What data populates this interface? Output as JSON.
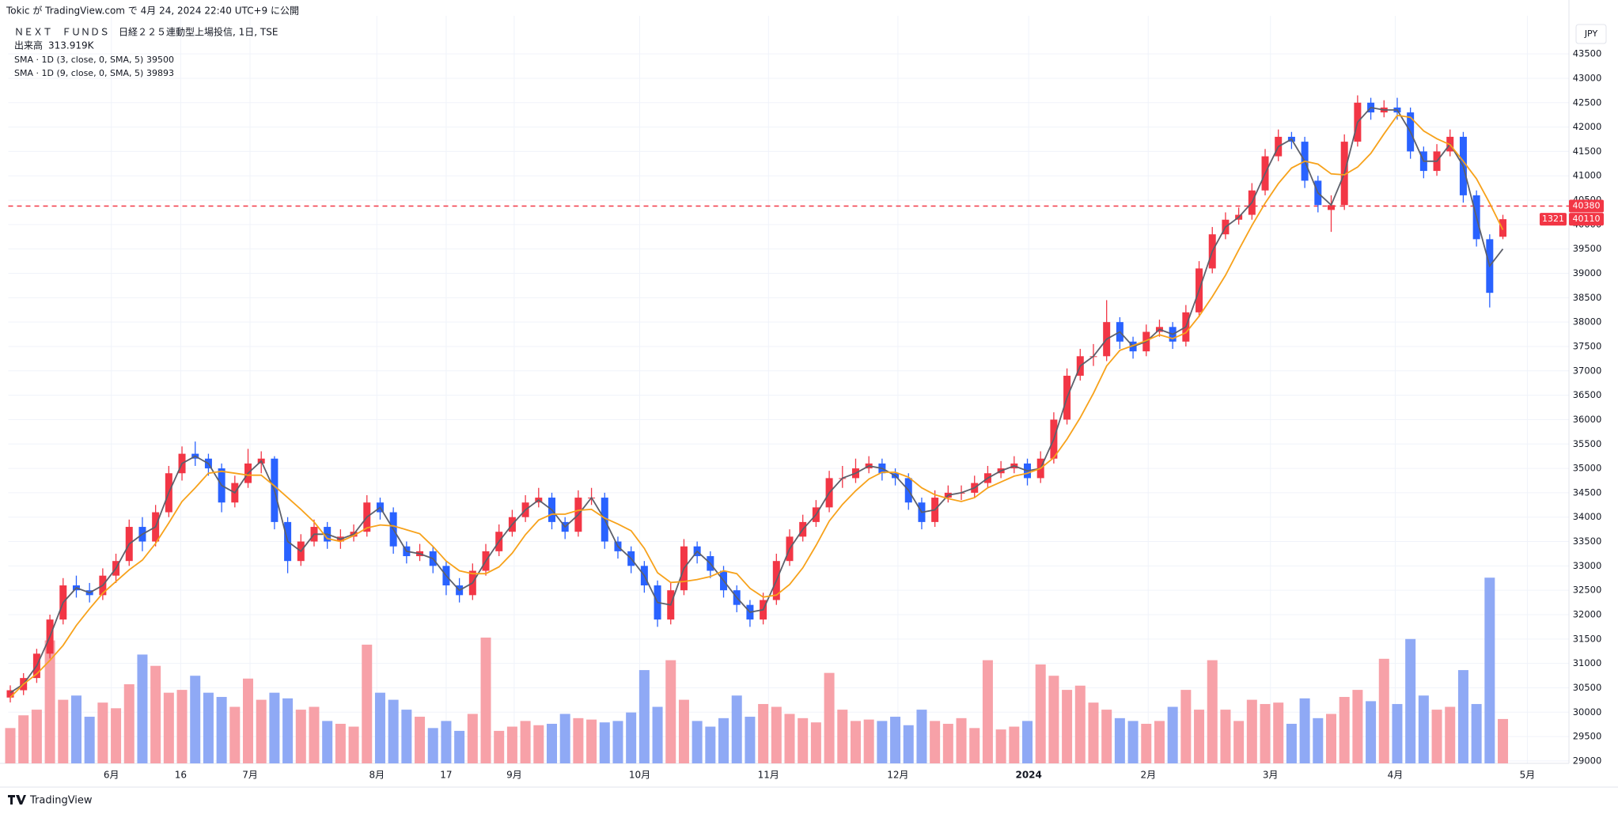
{
  "header": {
    "published": "Tokic が TradingView.com で 4月 24, 2024 22:40 UTC+9 に公開"
  },
  "footer": {
    "brand": "TradingView"
  },
  "chart_data": {
    "type": "candlestick",
    "title": "ＮＥＸＴ　ＦＵＮＤＳ　日経２２５連動型上場投信, 1日, TSE",
    "currency": "JPY",
    "grid": true,
    "up_color": "#f23645",
    "down_color": "#2962ff",
    "xlim": [
      -0.3,
      236
    ],
    "ylim": [
      28950,
      44200
    ],
    "yticks": [
      29000,
      29500,
      30000,
      30500,
      31000,
      31500,
      32000,
      32500,
      33000,
      33500,
      34000,
      34500,
      35000,
      35500,
      36000,
      36500,
      37000,
      37500,
      38000,
      38500,
      39000,
      39500,
      40000,
      40500,
      41000,
      41500,
      42000,
      42500,
      43000,
      43500
    ],
    "xticks": [
      {
        "value": 15.3,
        "label": "6月"
      },
      {
        "value": 25.8,
        "label": "16"
      },
      {
        "value": 36.3,
        "label": "7月"
      },
      {
        "value": 55.5,
        "label": "8月"
      },
      {
        "value": 66,
        "label": "17"
      },
      {
        "value": 76.3,
        "label": "9月"
      },
      {
        "value": 95.3,
        "label": "10月"
      },
      {
        "value": 114.8,
        "label": "11月"
      },
      {
        "value": 134.4,
        "label": "12月"
      },
      {
        "value": 154.2,
        "label": "2024"
      },
      {
        "value": 172.3,
        "label": "2月"
      },
      {
        "value": 190.8,
        "label": "3月"
      },
      {
        "value": 209.7,
        "label": "4月"
      },
      {
        "value": 229.7,
        "label": "5月"
      }
    ],
    "x": [
      0,
      2,
      4,
      6,
      8,
      10,
      12,
      14,
      16,
      18,
      20,
      22,
      24,
      26,
      28,
      30,
      32,
      34,
      36,
      38,
      40,
      42,
      44,
      46,
      48,
      50,
      52,
      54,
      56,
      58,
      60,
      62,
      64,
      66,
      68,
      70,
      72,
      74,
      76,
      78,
      80,
      82,
      84,
      86,
      88,
      90,
      92,
      94,
      96,
      98,
      100,
      102,
      104,
      106,
      108,
      110,
      112,
      114,
      116,
      118,
      120,
      122,
      124,
      126,
      128,
      130,
      132,
      134,
      136,
      138,
      140,
      142,
      144,
      146,
      148,
      150,
      152,
      154,
      156,
      158,
      160,
      162,
      164,
      166,
      168,
      170,
      172,
      174,
      176,
      178,
      180,
      182,
      184,
      186,
      188,
      190,
      192,
      194,
      196,
      198,
      200,
      202,
      204,
      206,
      208,
      210,
      212,
      214,
      216,
      218,
      220,
      222,
      224,
      226
    ],
    "candles": [
      [
        30300,
        30550,
        30200,
        30450
      ],
      [
        30450,
        30800,
        30350,
        30700
      ],
      [
        30700,
        31300,
        30600,
        31200
      ],
      [
        31200,
        32000,
        31100,
        31900
      ],
      [
        31900,
        32750,
        31800,
        32600
      ],
      [
        32600,
        32800,
        32350,
        32500
      ],
      [
        32500,
        32650,
        32250,
        32400
      ],
      [
        32400,
        32950,
        32300,
        32800
      ],
      [
        32800,
        33250,
        32650,
        33100
      ],
      [
        33100,
        33950,
        33000,
        33800
      ],
      [
        33800,
        34000,
        33300,
        33500
      ],
      [
        33500,
        34250,
        33400,
        34100
      ],
      [
        34100,
        35050,
        34000,
        34900
      ],
      [
        34900,
        35450,
        34750,
        35300
      ],
      [
        35300,
        35550,
        35050,
        35200
      ],
      [
        35200,
        35300,
        34850,
        35000
      ],
      [
        35000,
        35100,
        34100,
        34300
      ],
      [
        34300,
        34850,
        34200,
        34700
      ],
      [
        34700,
        35400,
        34600,
        35100
      ],
      [
        35100,
        35350,
        34900,
        35200
      ],
      [
        35200,
        35250,
        33750,
        33900
      ],
      [
        33900,
        34000,
        32850,
        33100
      ],
      [
        33100,
        33650,
        33000,
        33500
      ],
      [
        33500,
        33950,
        33400,
        33800
      ],
      [
        33800,
        33900,
        33350,
        33500
      ],
      [
        33500,
        33750,
        33350,
        33600
      ],
      [
        33600,
        33850,
        33500,
        33700
      ],
      [
        33700,
        34450,
        33600,
        34300
      ],
      [
        34300,
        34400,
        33950,
        34100
      ],
      [
        34100,
        34200,
        33250,
        33400
      ],
      [
        33400,
        33500,
        33050,
        33200
      ],
      [
        33200,
        33450,
        33100,
        33300
      ],
      [
        33300,
        33400,
        32850,
        33000
      ],
      [
        33000,
        33100,
        32400,
        32600
      ],
      [
        32600,
        32750,
        32250,
        32400
      ],
      [
        32400,
        33050,
        32300,
        32900
      ],
      [
        32900,
        33450,
        32800,
        33300
      ],
      [
        33300,
        33850,
        33200,
        33700
      ],
      [
        33700,
        34150,
        33600,
        34000
      ],
      [
        34000,
        34450,
        33900,
        34300
      ],
      [
        34300,
        34600,
        34200,
        34400
      ],
      [
        34400,
        34500,
        33750,
        33900
      ],
      [
        33900,
        34000,
        33550,
        33700
      ],
      [
        33700,
        34550,
        33600,
        34400
      ],
      [
        34400,
        34600,
        34250,
        34400
      ],
      [
        34400,
        34500,
        33350,
        33500
      ],
      [
        33500,
        33600,
        33150,
        33300
      ],
      [
        33300,
        33400,
        32850,
        33000
      ],
      [
        33000,
        33100,
        32450,
        32600
      ],
      [
        32600,
        32700,
        31750,
        31900
      ],
      [
        31900,
        32650,
        31800,
        32500
      ],
      [
        32500,
        33550,
        32400,
        33400
      ],
      [
        33400,
        33500,
        33050,
        33200
      ],
      [
        33200,
        33300,
        32750,
        32900
      ],
      [
        32900,
        33000,
        32350,
        32500
      ],
      [
        32500,
        32600,
        32050,
        32200
      ],
      [
        32200,
        32300,
        31750,
        31900
      ],
      [
        31900,
        32450,
        31800,
        32300
      ],
      [
        32300,
        33250,
        32200,
        33100
      ],
      [
        33100,
        33750,
        33000,
        33600
      ],
      [
        33600,
        34050,
        33500,
        33900
      ],
      [
        33900,
        34350,
        33800,
        34200
      ],
      [
        34200,
        34950,
        34100,
        34800
      ],
      [
        34800,
        35050,
        34600,
        34800
      ],
      [
        34800,
        35200,
        34700,
        35000
      ],
      [
        35000,
        35250,
        34900,
        35100
      ],
      [
        35100,
        35200,
        34750,
        34900
      ],
      [
        34900,
        35000,
        34650,
        34800
      ],
      [
        34800,
        34900,
        34150,
        34300
      ],
      [
        34300,
        34400,
        33750,
        33900
      ],
      [
        33900,
        34550,
        33800,
        34400
      ],
      [
        34400,
        34650,
        34300,
        34500
      ],
      [
        34500,
        34650,
        34350,
        34500
      ],
      [
        34500,
        34850,
        34400,
        34700
      ],
      [
        34700,
        35050,
        34600,
        34900
      ],
      [
        34900,
        35150,
        34800,
        35000
      ],
      [
        35000,
        35250,
        34900,
        35100
      ],
      [
        35100,
        35200,
        34650,
        34800
      ],
      [
        34800,
        35350,
        34700,
        35200
      ],
      [
        35200,
        36150,
        35100,
        36000
      ],
      [
        36000,
        37050,
        35900,
        36900
      ],
      [
        36900,
        37450,
        36800,
        37300
      ],
      [
        37300,
        37550,
        37100,
        37300
      ],
      [
        37300,
        38450,
        37200,
        38000
      ],
      [
        38000,
        38100,
        37450,
        37600
      ],
      [
        37600,
        37700,
        37250,
        37400
      ],
      [
        37400,
        37950,
        37300,
        37800
      ],
      [
        37800,
        38050,
        37700,
        37900
      ],
      [
        37900,
        38000,
        37450,
        37600
      ],
      [
        37600,
        38350,
        37500,
        38200
      ],
      [
        38200,
        39250,
        38100,
        39100
      ],
      [
        39100,
        39950,
        39000,
        39800
      ],
      [
        39800,
        40250,
        39700,
        40100
      ],
      [
        40100,
        40350,
        40000,
        40200
      ],
      [
        40200,
        40850,
        40100,
        40700
      ],
      [
        40700,
        41550,
        40600,
        41400
      ],
      [
        41400,
        41950,
        41300,
        41800
      ],
      [
        41800,
        41900,
        41550,
        41700
      ],
      [
        41700,
        41800,
        40750,
        40900
      ],
      [
        40900,
        41000,
        40250,
        40400
      ],
      [
        40300,
        40600,
        39850,
        40400
      ],
      [
        40400,
        41850,
        40300,
        41700
      ],
      [
        41700,
        42650,
        41600,
        42500
      ],
      [
        42500,
        42600,
        42150,
        42300
      ],
      [
        42300,
        42550,
        42200,
        42400
      ],
      [
        42400,
        42600,
        42150,
        42300
      ],
      [
        42300,
        42400,
        41350,
        41500
      ],
      [
        41500,
        41600,
        40950,
        41100
      ],
      [
        41100,
        41650,
        41000,
        41500
      ],
      [
        41500,
        41950,
        41400,
        41800
      ],
      [
        41800,
        41900,
        40450,
        40600
      ],
      [
        40600,
        40700,
        39550,
        39700
      ],
      [
        39700,
        39800,
        38300,
        38600
      ],
      [
        39750,
        40200,
        39700,
        40110
      ]
    ],
    "volume": {
      "name": "出来高",
      "value_label": "313.919K",
      "ylim": [
        0,
        1500
      ],
      "up_color": "#f7a1a8",
      "down_color": "#8fa9f5",
      "values": [
        250,
        340,
        380,
        870,
        450,
        480,
        330,
        430,
        390,
        560,
        770,
        690,
        500,
        520,
        620,
        500,
        470,
        400,
        600,
        450,
        500,
        460,
        380,
        400,
        300,
        280,
        260,
        840,
        500,
        450,
        380,
        330,
        250,
        300,
        230,
        350,
        890,
        230,
        260,
        300,
        270,
        280,
        350,
        320,
        310,
        290,
        300,
        360,
        660,
        400,
        730,
        450,
        300,
        260,
        320,
        480,
        330,
        420,
        400,
        350,
        320,
        290,
        640,
        380,
        300,
        310,
        300,
        330,
        270,
        380,
        300,
        280,
        320,
        250,
        730,
        240,
        260,
        300,
        700,
        620,
        520,
        550,
        430,
        380,
        320,
        300,
        280,
        300,
        400,
        520,
        380,
        730,
        380,
        300,
        450,
        420,
        430,
        280,
        460,
        320,
        350,
        470,
        520,
        440,
        740,
        420,
        880,
        480,
        380,
        400,
        660,
        420,
        1314,
        313.919
      ]
    },
    "series": [
      {
        "name": "SMA · 1D (3, close, 0, SMA, 5)",
        "color": "#5d606b",
        "values": [
          30400,
          30575,
          30950,
          31550,
          32250,
          32550,
          32450,
          32600,
          32950,
          33450,
          33650,
          33800,
          34500,
          35100,
          35250,
          35100,
          34650,
          34500,
          34900,
          35150,
          34550,
          33500,
          33300,
          33650,
          33650,
          33550,
          33650,
          34000,
          34200,
          33750,
          33300,
          33250,
          33150,
          32800,
          32500,
          32650,
          33100,
          33500,
          33850,
          34150,
          34350,
          34150,
          33800,
          34050,
          34400,
          33950,
          33400,
          33150,
          32800,
          32250,
          32200,
          32950,
          33300,
          33050,
          32700,
          32350,
          32050,
          32100,
          32700,
          33350,
          33750,
          34050,
          34500,
          34800,
          34900,
          35050,
          35000,
          34850,
          34550,
          34100,
          34150,
          34450,
          34500,
          34600,
          34800,
          34950,
          35050,
          34950,
          35000,
          35600,
          36450,
          37100,
          37300,
          37650,
          37800,
          37500,
          37600,
          37850,
          37750,
          37900,
          38650,
          39450,
          39950,
          40150,
          40450,
          41050,
          41600,
          41750,
          41300,
          40650,
          40400,
          41050,
          42100,
          42400,
          42350,
          42350,
          41900,
          41300,
          41300,
          41650,
          41200,
          40150,
          39150,
          39500
        ]
      },
      {
        "name": "SMA · 1D (9, close, 0, SMA, 5)",
        "color": "#f7a21b",
        "values": [
          30300,
          30575,
          30783,
          31062,
          31370,
          31780,
          32120,
          32440,
          32680,
          32920,
          33120,
          33460,
          33880,
          34320,
          34600,
          34900,
          34940,
          34900,
          34860,
          34860,
          34640,
          34400,
          34160,
          33900,
          33560,
          33500,
          33620,
          33780,
          33840,
          33820,
          33740,
          33660,
          33400,
          33100,
          32900,
          32840,
          32840,
          32980,
          33260,
          33640,
          33940,
          34060,
          34060,
          34140,
          34160,
          33980,
          33860,
          33720,
          33360,
          32860,
          32660,
          32680,
          32720,
          32780,
          32900,
          32840,
          32540,
          32360,
          32400,
          32620,
          32960,
          33420,
          33920,
          34260,
          34540,
          34780,
          34920,
          34920,
          34820,
          34600,
          34460,
          34380,
          34320,
          34400,
          34600,
          34720,
          34840,
          34900,
          35000,
          35220,
          35600,
          36040,
          36540,
          37100,
          37420,
          37520,
          37620,
          37740,
          37660,
          37780,
          38120,
          38520,
          38960,
          39480,
          39980,
          40440,
          40840,
          41160,
          41300,
          41240,
          41040,
          41020,
          41180,
          41460,
          41860,
          42240,
          42200,
          41920,
          41760,
          41640,
          41300,
          40940,
          40440,
          39893
        ]
      }
    ],
    "hline": {
      "value": 40380,
      "color": "#f23645"
    },
    "countdown": "1321"
  }
}
